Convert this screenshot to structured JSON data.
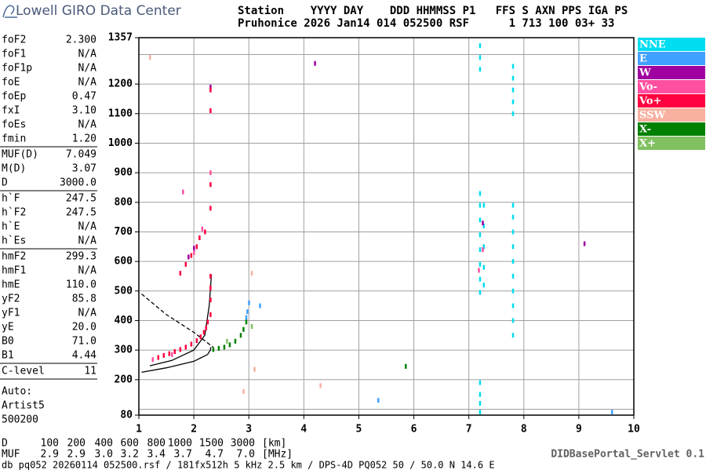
{
  "logo": "Lowell GIRO Data Center",
  "header": {
    "line1": "Station    YYYY DAY    DDD HHMMSS P1   FFS S AXN PPS IGA PS",
    "line2": "Pruhonice 2026 Jan14 014 052500 RSF      1 713 100 03+ 33"
  },
  "parameters": [
    [
      [
        "foF2",
        "2.300"
      ],
      [
        "foF1",
        "N/A"
      ],
      [
        "foF1p",
        "N/A"
      ],
      [
        "foE",
        "N/A"
      ],
      [
        "foEp",
        "0.47"
      ],
      [
        "fxI",
        "3.10"
      ],
      [
        "foEs",
        "N/A"
      ],
      [
        "fmin",
        "1.20"
      ]
    ],
    [
      [
        "MUF(D)",
        "7.049"
      ],
      [
        "M(D)",
        "3.07"
      ],
      [
        "D",
        "3000.0"
      ]
    ],
    [
      [
        "h`F",
        "247.5"
      ],
      [
        "h`F2",
        "247.5"
      ],
      [
        "h`E",
        "N/A"
      ],
      [
        "h`Es",
        "N/A"
      ]
    ],
    [
      [
        "hmF2",
        "299.3"
      ],
      [
        "hmF1",
        "N/A"
      ],
      [
        "hmE",
        "110.0"
      ],
      [
        "yF2",
        "85.8"
      ],
      [
        "yF1",
        "N/A"
      ],
      [
        "yE",
        "20.0"
      ],
      [
        "B0",
        "71.0"
      ],
      [
        "B1",
        "4.44"
      ]
    ],
    [
      [
        "C-level",
        "11"
      ]
    ]
  ],
  "auto": [
    "Auto:",
    "Artist5",
    "500200"
  ],
  "bottom": {
    "d_label": "D",
    "d_values": [
      "100",
      "200",
      "400",
      "600",
      "800",
      "1000",
      "1500",
      "3000"
    ],
    "d_unit": "[km]",
    "muf_label": "MUF",
    "muf_values": [
      "2.9",
      "2.9",
      "3.0",
      "3.2",
      "3.4",
      "3.7",
      "4.7",
      "7.0"
    ],
    "muf_unit": "[MHz]",
    "footer": "db pq052 20260114 052500.rsf / 181fx512h 5 kHz 2.5 km / DPS-4D PQ052 50 / 50.0 N 14.6 E",
    "servlet": "DIDBasePortal_Servlet 0.1"
  },
  "chart_data": {
    "type": "scatter",
    "xlim": [
      1,
      10
    ],
    "xticks": [
      1,
      2,
      3,
      4,
      5,
      6,
      7,
      8,
      9,
      10
    ],
    "ylim": [
      80,
      1357
    ],
    "yticks": [
      80,
      200,
      300,
      400,
      500,
      600,
      700,
      800,
      900,
      1000,
      1100,
      1200,
      1357
    ],
    "ygrid": [
      100,
      200,
      300,
      400,
      500,
      600,
      700,
      800,
      900,
      1000,
      1100,
      1200,
      1300
    ],
    "grid": true,
    "series": [
      {
        "name": "NNE",
        "color": "#00dcf0",
        "x": [
          7.2,
          7.2,
          7.2,
          7.2,
          7.2,
          7.2,
          7.2,
          7.2,
          7.27,
          7.27,
          7.27,
          7.27,
          7.27,
          7.8,
          7.8,
          7.8,
          7.8,
          7.8,
          7.8,
          7.8,
          7.8,
          7.8,
          7.8,
          7.2,
          7.2,
          7.2,
          7.8,
          7.8,
          7.8,
          7.8,
          7.8,
          7.2,
          7.2,
          7.2,
          7.2
        ],
        "y": [
          495,
          540,
          590,
          640,
          690,
          740,
          790,
          830,
          520,
          580,
          650,
          720,
          790,
          350,
          400,
          450,
          500,
          550,
          600,
          650,
          700,
          750,
          790,
          1250,
          1290,
          1330,
          1100,
          1140,
          1180,
          1220,
          1260,
          90,
          120,
          150,
          190
        ]
      },
      {
        "name": "E",
        "color": "#40a0ff",
        "x": [
          2.95,
          2.97,
          3.0,
          3.2,
          5.35,
          9.6
        ],
        "y": [
          410,
          430,
          460,
          450,
          130,
          90
        ]
      },
      {
        "name": "W",
        "color": "#a000a0",
        "x": [
          1.9,
          2.0,
          2.3,
          4.2,
          9.1,
          7.25
        ],
        "y": [
          615,
          645,
          1190,
          1270,
          660,
          730
        ]
      },
      {
        "name": "Vo-",
        "color": "#ff4fa0",
        "x": [
          1.25,
          1.6,
          1.8,
          2.0,
          2.15,
          2.3,
          7.18,
          7.25
        ],
        "y": [
          268,
          285,
          835,
          630,
          710,
          900,
          570,
          640
        ]
      },
      {
        "name": "Vo+",
        "color": "#ff0040",
        "x": [
          1.35,
          1.45,
          1.55,
          1.65,
          1.75,
          1.85,
          1.95,
          2.05,
          2.12,
          2.18,
          2.22,
          2.25,
          2.3,
          2.3,
          2.3,
          2.3,
          1.75,
          1.85,
          1.95,
          2.05,
          2.1,
          2.2,
          2.3,
          2.3,
          2.3,
          2.3
        ],
        "y": [
          275,
          282,
          288,
          295,
          302,
          310,
          320,
          332,
          345,
          360,
          375,
          395,
          420,
          470,
          510,
          550,
          560,
          590,
          620,
          650,
          680,
          700,
          780,
          860,
          1110,
          1180
        ]
      },
      {
        "name": "SSW",
        "color": "#f8b0a0",
        "x": [
          1.2,
          2.9,
          3.05,
          3.1,
          4.3
        ],
        "y": [
          1290,
          160,
          560,
          235,
          180
        ]
      },
      {
        "name": "X-",
        "color": "#008000",
        "x": [
          2.35,
          2.45,
          2.55,
          2.65,
          2.75,
          2.85,
          2.9,
          2.95,
          5.85
        ],
        "y": [
          302,
          306,
          310,
          318,
          330,
          350,
          370,
          395,
          245
        ]
      },
      {
        "name": "X+",
        "color": "#80c060",
        "x": [
          2.6,
          3.05
        ],
        "y": [
          330,
          380
        ]
      }
    ],
    "profiles": [
      {
        "color": "#000000",
        "dashed": false,
        "x": [
          1.05,
          1.5,
          2.0,
          2.25,
          2.3,
          2.31
        ],
        "y": [
          225,
          240,
          262,
          285,
          300,
          310
        ]
      },
      {
        "color": "#000000",
        "dashed": false,
        "x": [
          1.2,
          1.6,
          2.0,
          2.2,
          2.28,
          2.32
        ],
        "y": [
          247,
          265,
          300,
          350,
          450,
          555
        ]
      },
      {
        "color": "#000000",
        "dashed": true,
        "x": [
          1.05,
          1.5,
          2.0,
          2.35
        ],
        "y": [
          490,
          420,
          360,
          310
        ]
      }
    ]
  }
}
